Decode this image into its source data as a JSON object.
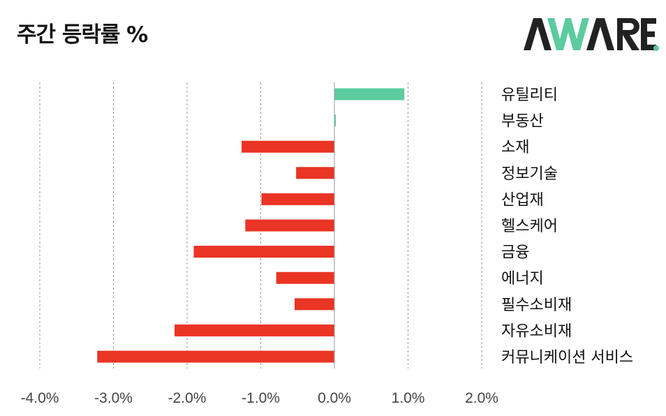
{
  "title": "주간 등락률 %",
  "logo": {
    "text": "AWARE."
  },
  "colors": {
    "positive": "#5ccb9e",
    "negative": "#ea3424",
    "grid": "#9a9a9a",
    "axis": "#9a9a9a"
  },
  "chart_data": {
    "type": "bar",
    "orientation": "horizontal",
    "title": "주간 등락률 %",
    "categories": [
      "유틸리티",
      "부동산",
      "소재",
      "정보기술",
      "산업재",
      "헬스케어",
      "금융",
      "에너지",
      "필수소비재",
      "자유소비재",
      "커뮤니케이션 서비스"
    ],
    "values": [
      0.95,
      0.02,
      -1.26,
      -0.52,
      -0.99,
      -1.21,
      -1.91,
      -0.79,
      -0.54,
      -2.17,
      -3.22
    ],
    "xlim": [
      -4.0,
      2.0
    ],
    "xticks": [
      -4.0,
      -3.0,
      -2.0,
      -1.0,
      0.0,
      1.0,
      2.0
    ],
    "xtick_labels": [
      "-4.0%",
      "-3.0%",
      "-2.0%",
      "-1.0%",
      "0.0%",
      "1.0%",
      "2.0%"
    ],
    "grid": "vertical dashed",
    "legend": "none",
    "category_labels_position": "right"
  }
}
